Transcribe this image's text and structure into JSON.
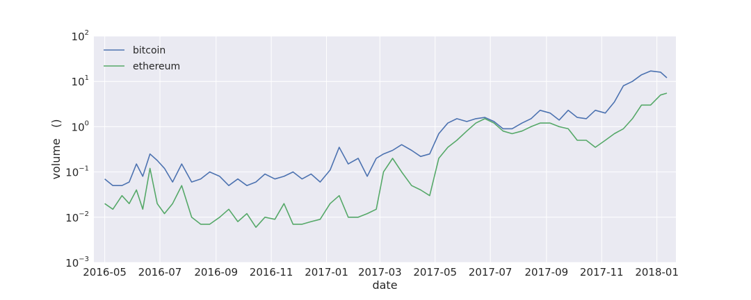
{
  "chart_data": {
    "type": "line",
    "title": "",
    "xlabel": "date",
    "ylabel": "volume   ()",
    "yscale": "log",
    "ylim": [
      0.001,
      100
    ],
    "xlim": [
      "2016-04-19",
      "2018-01-22"
    ],
    "grid": true,
    "legend_position": "top-left",
    "x_ticks": [
      "2016-05",
      "2016-07",
      "2016-09",
      "2016-11",
      "2017-01",
      "2017-03",
      "2017-05",
      "2017-07",
      "2017-09",
      "2017-11",
      "2018-01"
    ],
    "y_ticks": [
      {
        "base": "10",
        "exp": "−3",
        "value": 0.001
      },
      {
        "base": "10",
        "exp": "−2",
        "value": 0.01
      },
      {
        "base": "10",
        "exp": "−1",
        "value": 0.1
      },
      {
        "base": "10",
        "exp": "0",
        "value": 1
      },
      {
        "base": "10",
        "exp": "1",
        "value": 10
      },
      {
        "base": "10",
        "exp": "2",
        "value": 100
      }
    ],
    "series": [
      {
        "name": "bitcoin",
        "color": "#4c72b0",
        "x": [
          "2016-05-01",
          "2016-05-10",
          "2016-05-20",
          "2016-05-28",
          "2016-06-05",
          "2016-06-12",
          "2016-06-20",
          "2016-06-28",
          "2016-07-06",
          "2016-07-15",
          "2016-07-25",
          "2016-08-05",
          "2016-08-15",
          "2016-08-25",
          "2016-09-05",
          "2016-09-15",
          "2016-09-25",
          "2016-10-05",
          "2016-10-15",
          "2016-10-25",
          "2016-11-05",
          "2016-11-15",
          "2016-11-25",
          "2016-12-05",
          "2016-12-15",
          "2016-12-25",
          "2017-01-05",
          "2017-01-15",
          "2017-01-25",
          "2017-02-05",
          "2017-02-15",
          "2017-02-25",
          "2017-03-05",
          "2017-03-15",
          "2017-03-25",
          "2017-04-05",
          "2017-04-15",
          "2017-04-25",
          "2017-05-05",
          "2017-05-15",
          "2017-05-25",
          "2017-06-05",
          "2017-06-15",
          "2017-06-25",
          "2017-07-05",
          "2017-07-15",
          "2017-07-25",
          "2017-08-05",
          "2017-08-15",
          "2017-08-25",
          "2017-09-05",
          "2017-09-15",
          "2017-09-25",
          "2017-10-05",
          "2017-10-15",
          "2017-10-25",
          "2017-11-05",
          "2017-11-15",
          "2017-11-25",
          "2017-12-05",
          "2017-12-15",
          "2017-12-25",
          "2018-01-05",
          "2018-01-12"
        ],
        "values": [
          0.07,
          0.05,
          0.05,
          0.06,
          0.15,
          0.08,
          0.25,
          0.18,
          0.12,
          0.06,
          0.15,
          0.06,
          0.07,
          0.1,
          0.08,
          0.05,
          0.07,
          0.05,
          0.06,
          0.09,
          0.07,
          0.08,
          0.1,
          0.07,
          0.09,
          0.06,
          0.11,
          0.35,
          0.15,
          0.2,
          0.08,
          0.2,
          0.25,
          0.3,
          0.4,
          0.3,
          0.22,
          0.25,
          0.7,
          1.2,
          1.5,
          1.3,
          1.5,
          1.6,
          1.3,
          0.9,
          0.9,
          1.2,
          1.5,
          2.3,
          2.0,
          1.4,
          2.3,
          1.6,
          1.5,
          2.3,
          2.0,
          3.5,
          8.0,
          10.0,
          14.0,
          17.0,
          16.0,
          12.0
        ]
      },
      {
        "name": "ethereum",
        "color": "#55a868",
        "x": [
          "2016-05-01",
          "2016-05-10",
          "2016-05-20",
          "2016-05-28",
          "2016-06-05",
          "2016-06-12",
          "2016-06-20",
          "2016-06-28",
          "2016-07-06",
          "2016-07-15",
          "2016-07-25",
          "2016-08-05",
          "2016-08-15",
          "2016-08-25",
          "2016-09-05",
          "2016-09-15",
          "2016-09-25",
          "2016-10-05",
          "2016-10-15",
          "2016-10-25",
          "2016-11-05",
          "2016-11-15",
          "2016-11-25",
          "2016-12-05",
          "2016-12-15",
          "2016-12-25",
          "2017-01-05",
          "2017-01-15",
          "2017-01-25",
          "2017-02-05",
          "2017-02-15",
          "2017-02-25",
          "2017-03-05",
          "2017-03-15",
          "2017-03-25",
          "2017-04-05",
          "2017-04-15",
          "2017-04-25",
          "2017-05-05",
          "2017-05-15",
          "2017-05-25",
          "2017-06-05",
          "2017-06-15",
          "2017-06-25",
          "2017-07-05",
          "2017-07-15",
          "2017-07-25",
          "2017-08-05",
          "2017-08-15",
          "2017-08-25",
          "2017-09-05",
          "2017-09-15",
          "2017-09-25",
          "2017-10-05",
          "2017-10-15",
          "2017-10-25",
          "2017-11-05",
          "2017-11-15",
          "2017-11-25",
          "2017-12-05",
          "2017-12-15",
          "2017-12-25",
          "2018-01-05",
          "2018-01-12"
        ],
        "values": [
          0.02,
          0.015,
          0.03,
          0.02,
          0.04,
          0.015,
          0.12,
          0.02,
          0.012,
          0.02,
          0.05,
          0.01,
          0.007,
          0.007,
          0.01,
          0.015,
          0.008,
          0.012,
          0.006,
          0.01,
          0.009,
          0.02,
          0.007,
          0.007,
          0.008,
          0.009,
          0.02,
          0.03,
          0.01,
          0.01,
          0.012,
          0.015,
          0.1,
          0.2,
          0.1,
          0.05,
          0.04,
          0.03,
          0.2,
          0.35,
          0.5,
          0.8,
          1.2,
          1.5,
          1.2,
          0.8,
          0.7,
          0.8,
          1.0,
          1.2,
          1.2,
          1.0,
          0.9,
          0.5,
          0.5,
          0.35,
          0.5,
          0.7,
          0.9,
          1.5,
          3.0,
          3.0,
          5.0,
          5.5
        ]
      }
    ]
  }
}
